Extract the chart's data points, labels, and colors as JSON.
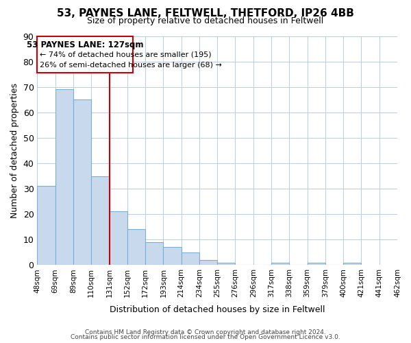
{
  "title": "53, PAYNES LANE, FELTWELL, THETFORD, IP26 4BB",
  "subtitle": "Size of property relative to detached houses in Feltwell",
  "xlabel": "Distribution of detached houses by size in Feltwell",
  "ylabel": "Number of detached properties",
  "bar_values": [
    31,
    69,
    65,
    35,
    21,
    14,
    9,
    7,
    5,
    2,
    1,
    0,
    0,
    1,
    0,
    1,
    0,
    1
  ],
  "tick_labels": [
    "48sqm",
    "69sqm",
    "89sqm",
    "110sqm",
    "131sqm",
    "152sqm",
    "172sqm",
    "193sqm",
    "214sqm",
    "234sqm",
    "255sqm",
    "276sqm",
    "296sqm",
    "317sqm",
    "338sqm",
    "359sqm",
    "379sqm",
    "400sqm",
    "421sqm",
    "441sqm",
    "462sqm"
  ],
  "n_bins": 18,
  "n_ticks": 21,
  "property_bin_index": 4,
  "ylim": [
    0,
    90
  ],
  "yticks": [
    0,
    10,
    20,
    30,
    40,
    50,
    60,
    70,
    80,
    90
  ],
  "bar_color": "#c8d9ee",
  "bar_edge_color": "#7aafd4",
  "line_color": "#cc0000",
  "annotation_title": "53 PAYNES LANE: 127sqm",
  "annotation_line1": "← 74% of detached houses are smaller (195)",
  "annotation_line2": "26% of semi-detached houses are larger (68) →",
  "annotation_box_color": "#ffffff",
  "annotation_box_edge": "#cc0000",
  "footer_line1": "Contains HM Land Registry data © Crown copyright and database right 2024.",
  "footer_line2": "Contains public sector information licensed under the Open Government Licence v3.0.",
  "background_color": "#ffffff",
  "grid_color": "#b8cce4"
}
